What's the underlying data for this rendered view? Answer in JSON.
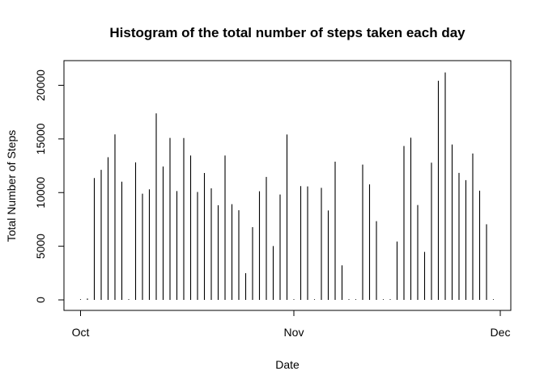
{
  "chart_data": {
    "type": "bar",
    "title": "Histogram of the total number of steps taken each day",
    "xlabel": "Date",
    "ylabel": "Total Number of Steps",
    "x_start_date": "2012-10-01",
    "x_ticks": [
      {
        "label": "Oct",
        "date": "2012-10-01"
      },
      {
        "label": "Nov",
        "date": "2012-11-01"
      },
      {
        "label": "Dec",
        "date": "2012-12-01"
      }
    ],
    "y_ticks": [
      0,
      5000,
      10000,
      15000,
      20000
    ],
    "ylim": [
      0,
      21500
    ],
    "grid": false,
    "dates": [
      "2012-10-01",
      "2012-10-02",
      "2012-10-03",
      "2012-10-04",
      "2012-10-05",
      "2012-10-06",
      "2012-10-07",
      "2012-10-08",
      "2012-10-09",
      "2012-10-10",
      "2012-10-11",
      "2012-10-12",
      "2012-10-13",
      "2012-10-14",
      "2012-10-15",
      "2012-10-16",
      "2012-10-17",
      "2012-10-18",
      "2012-10-19",
      "2012-10-20",
      "2012-10-21",
      "2012-10-22",
      "2012-10-23",
      "2012-10-24",
      "2012-10-25",
      "2012-10-26",
      "2012-10-27",
      "2012-10-28",
      "2012-10-29",
      "2012-10-30",
      "2012-10-31",
      "2012-11-01",
      "2012-11-02",
      "2012-11-03",
      "2012-11-04",
      "2012-11-05",
      "2012-11-06",
      "2012-11-07",
      "2012-11-08",
      "2012-11-09",
      "2012-11-10",
      "2012-11-11",
      "2012-11-12",
      "2012-11-13",
      "2012-11-14",
      "2012-11-15",
      "2012-11-16",
      "2012-11-17",
      "2012-11-18",
      "2012-11-19",
      "2012-11-20",
      "2012-11-21",
      "2012-11-22",
      "2012-11-23",
      "2012-11-24",
      "2012-11-25",
      "2012-11-26",
      "2012-11-27",
      "2012-11-28",
      "2012-11-29",
      "2012-11-30"
    ],
    "values": [
      0,
      126,
      11352,
      12116,
      13294,
      15420,
      11015,
      0,
      12811,
      9900,
      10304,
      17382,
      12426,
      15098,
      10139,
      15084,
      13452,
      10056,
      11829,
      10395,
      8821,
      13460,
      8918,
      8355,
      2492,
      6778,
      10119,
      11458,
      5018,
      9819,
      15414,
      0,
      10600,
      10571,
      0,
      10439,
      8334,
      12883,
      3219,
      0,
      0,
      12608,
      10765,
      7336,
      0,
      41,
      5441,
      14339,
      15110,
      8841,
      4472,
      12787,
      20427,
      21194,
      14478,
      11834,
      11162,
      13646,
      10183,
      7047,
      0
    ],
    "bar_color": "#000000"
  }
}
